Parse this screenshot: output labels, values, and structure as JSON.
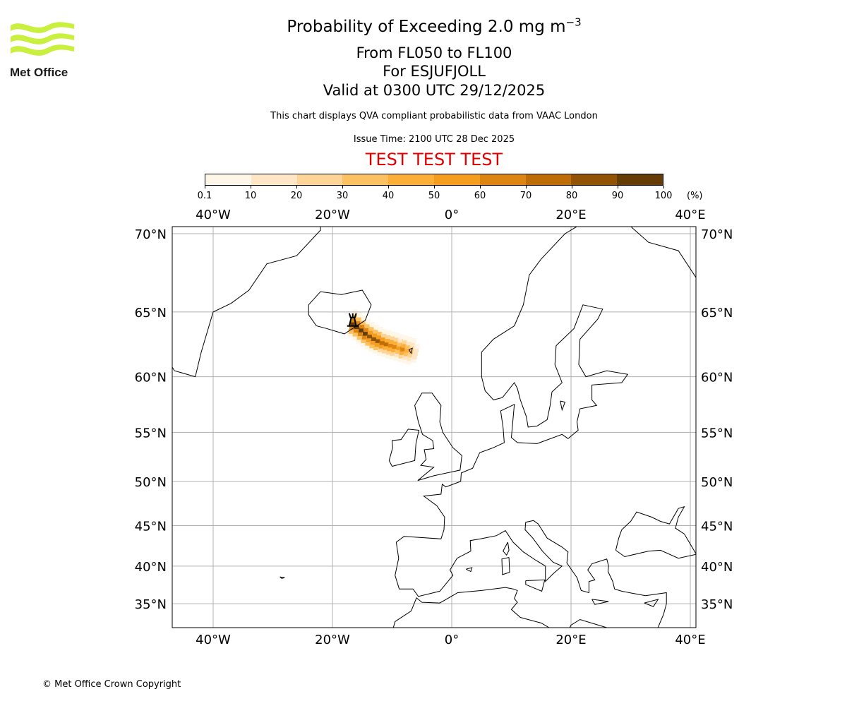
{
  "logo": {
    "text": "Met Office",
    "color": "#c8f03c"
  },
  "header": {
    "title_main": "Probability of Exceeding 2.0 mg m",
    "title_exponent": "−3",
    "levels": "From FL050 to FL100",
    "volcano": "For ESJUFJOLL",
    "valid": "Valid at 0300 UTC 29/12/2025",
    "description": "This chart displays QVA compliant probabilistic data from VAAC London",
    "issue_time": "Issue Time: 2100 UTC 28 Dec 2025",
    "test_banner": "TEST TEST TEST",
    "test_color": "#e00000"
  },
  "colorbar": {
    "unit": "(%)",
    "ticks": [
      "0.1",
      "10",
      "20",
      "30",
      "40",
      "50",
      "60",
      "70",
      "80",
      "90",
      "100"
    ],
    "colors": [
      "#fef6e6",
      "#fee6c6",
      "#fed596",
      "#fec161",
      "#fdae38",
      "#f59d1f",
      "#dc8512",
      "#bd6c06",
      "#935305",
      "#653c04"
    ]
  },
  "chart_data": {
    "type": "heatmap",
    "projection": "mercator",
    "extent": {
      "lon": [
        -46.9,
        40.9
      ],
      "lat": [
        31.8,
        70.6
      ]
    },
    "grid": true,
    "lon_ticks": [
      {
        "v": -40,
        "label": "40°W"
      },
      {
        "v": -20,
        "label": "20°W"
      },
      {
        "v": 0,
        "label": "0°"
      },
      {
        "v": 20,
        "label": "20°E"
      },
      {
        "v": 40,
        "label": "40°E"
      }
    ],
    "lat_ticks": [
      {
        "v": 70,
        "label": "70°N"
      },
      {
        "v": 65,
        "label": "65°N"
      },
      {
        "v": 60,
        "label": "60°N"
      },
      {
        "v": 55,
        "label": "55°N"
      },
      {
        "v": 50,
        "label": "50°N"
      },
      {
        "v": 45,
        "label": "45°N"
      },
      {
        "v": 40,
        "label": "40°N"
      },
      {
        "v": 35,
        "label": "35°N"
      }
    ],
    "volcano_location": {
      "lon": -16.6,
      "lat": 64.4
    },
    "plume_axis": [
      {
        "lon": -16.6,
        "lat": 64.15,
        "peak": 95
      },
      {
        "lon": -15.9,
        "lat": 63.95,
        "peak": 95
      },
      {
        "lon": -15.2,
        "lat": 63.7,
        "peak": 92
      },
      {
        "lon": -14.5,
        "lat": 63.45,
        "peak": 90
      },
      {
        "lon": -13.8,
        "lat": 63.25,
        "peak": 85
      },
      {
        "lon": -13.1,
        "lat": 63.05,
        "peak": 85
      },
      {
        "lon": -12.4,
        "lat": 62.9,
        "peak": 88
      },
      {
        "lon": -11.7,
        "lat": 62.75,
        "peak": 75
      },
      {
        "lon": -11.0,
        "lat": 62.65,
        "peak": 70
      },
      {
        "lon": -10.3,
        "lat": 62.55,
        "peak": 65
      },
      {
        "lon": -9.6,
        "lat": 62.45,
        "peak": 62
      },
      {
        "lon": -8.9,
        "lat": 62.35,
        "peak": 55
      },
      {
        "lon": -8.2,
        "lat": 62.25,
        "peak": 60
      },
      {
        "lon": -7.5,
        "lat": 62.15,
        "peak": 45
      },
      {
        "lon": -6.8,
        "lat": 62.05,
        "peak": 30
      },
      {
        "lon": -6.1,
        "lat": 61.9,
        "peak": 15
      }
    ]
  },
  "footer": {
    "copyright": "© Met Office Crown Copyright"
  }
}
